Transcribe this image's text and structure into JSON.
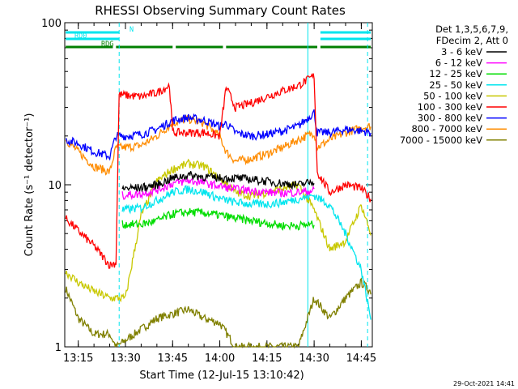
{
  "chart_data": {
    "type": "line",
    "title": "RHESSI Observing Summary Count Rates",
    "xlabel": "Start Time (12-Jul-15 13:10:42)",
    "ylabel": "Count Rate (s⁻¹ detector⁻¹)",
    "yscale": "log",
    "ylim": [
      1,
      100
    ],
    "y_ticks": [
      "1",
      "10",
      "100"
    ],
    "xlim_minutes": [
      13.17,
      14.83
    ],
    "x_ticks": [
      {
        "label": "13:15",
        "value": "13:15"
      },
      {
        "label": "13:30",
        "value": "13:30"
      },
      {
        "label": "13:45",
        "value": "13:45"
      },
      {
        "label": "14:00",
        "value": "14:00"
      },
      {
        "label": "14:15",
        "value": "14:15"
      },
      {
        "label": "14:30",
        "value": "14:30"
      },
      {
        "label": "14:45",
        "value": "14:45"
      }
    ],
    "legend": {
      "header": [
        "Det 1,3,5,6,7,9,",
        "FDecim 2, Att 0"
      ],
      "position": "right"
    },
    "timestamp": "29-Oct-2021 14:41",
    "flags": [
      {
        "label": "N",
        "color": "#00e5ee",
        "segments": [
          [
            "13:11",
            "13:28"
          ],
          [
            "14:32",
            "14:48"
          ]
        ]
      },
      {
        "label": "RD0",
        "color": "#00e5ee",
        "segments": [
          [
            "13:11",
            "13:28"
          ],
          [
            "14:32",
            "14:48"
          ]
        ]
      },
      {
        "label": "RDG",
        "color": "#008000",
        "segments": [
          [
            "13:11",
            "13:26"
          ],
          [
            "13:27",
            "13:45"
          ],
          [
            "13:46",
            "14:01"
          ],
          [
            "14:02",
            "14:31"
          ],
          [
            "14:32",
            "14:48"
          ]
        ]
      }
    ],
    "vlines": [
      {
        "time": "13:28",
        "color": "#00e5ee",
        "style": "dashed"
      },
      {
        "time": "14:28",
        "color": "#00e5ee",
        "style": "solid"
      },
      {
        "time": "14:47",
        "color": "#00e5ee",
        "style": "dashed"
      }
    ],
    "series": [
      {
        "name": "3 - 6 keV",
        "color": "#000000",
        "points": [
          [
            "13:29",
            9.5
          ],
          [
            "13:35",
            9.6
          ],
          [
            "13:40",
            10.0
          ],
          [
            "13:45",
            11.0
          ],
          [
            "13:50",
            11.5
          ],
          [
            "13:55",
            11.2
          ],
          [
            "14:00",
            11.0
          ],
          [
            "14:05",
            11.0
          ],
          [
            "14:10",
            10.8
          ],
          [
            "14:15",
            10.5
          ],
          [
            "14:20",
            10.2
          ],
          [
            "14:25",
            10.0
          ],
          [
            "14:30",
            10.5
          ]
        ]
      },
      {
        "name": "6 - 12 keV",
        "color": "#ff00ff",
        "points": [
          [
            "13:29",
            8.6
          ],
          [
            "13:35",
            8.8
          ],
          [
            "13:40",
            9.3
          ],
          [
            "13:45",
            10.2
          ],
          [
            "13:50",
            10.6
          ],
          [
            "13:55",
            10.3
          ],
          [
            "14:00",
            9.8
          ],
          [
            "14:05",
            9.4
          ],
          [
            "14:10",
            9.2
          ],
          [
            "14:15",
            9.0
          ],
          [
            "14:20",
            8.9
          ],
          [
            "14:25",
            9.0
          ],
          [
            "14:30",
            9.2
          ]
        ]
      },
      {
        "name": "12 - 25 keV",
        "color": "#00dd00",
        "points": [
          [
            "13:29",
            5.7
          ],
          [
            "13:35",
            5.7
          ],
          [
            "13:40",
            6.0
          ],
          [
            "13:45",
            6.6
          ],
          [
            "13:50",
            6.8
          ],
          [
            "13:55",
            6.7
          ],
          [
            "14:00",
            6.5
          ],
          [
            "14:05",
            6.2
          ],
          [
            "14:10",
            6.0
          ],
          [
            "14:15",
            5.8
          ],
          [
            "14:20",
            5.6
          ],
          [
            "14:25",
            5.6
          ],
          [
            "14:30",
            5.7
          ]
        ]
      },
      {
        "name": "25 - 50 keV",
        "color": "#00e5ee",
        "points": [
          [
            "13:29",
            7.0
          ],
          [
            "13:35",
            7.2
          ],
          [
            "13:40",
            8.0
          ],
          [
            "13:45",
            9.0
          ],
          [
            "13:50",
            9.4
          ],
          [
            "13:55",
            9.0
          ],
          [
            "14:00",
            8.2
          ],
          [
            "14:05",
            7.8
          ],
          [
            "14:10",
            7.6
          ],
          [
            "14:15",
            7.6
          ],
          [
            "14:20",
            7.8
          ],
          [
            "14:25",
            8.2
          ],
          [
            "14:30",
            8.6
          ],
          [
            "14:35",
            7.5
          ],
          [
            "14:40",
            5.0
          ],
          [
            "14:45",
            3.0
          ],
          [
            "14:48",
            1.5
          ]
        ]
      },
      {
        "name": "50 - 100 keV",
        "color": "#c8c800",
        "points": [
          [
            "13:11",
            2.9
          ],
          [
            "13:15",
            2.5
          ],
          [
            "13:20",
            2.2
          ],
          [
            "13:25",
            2.0
          ],
          [
            "13:30",
            2.0
          ],
          [
            "13:35",
            6.5
          ],
          [
            "13:40",
            10.5
          ],
          [
            "13:45",
            12.5
          ],
          [
            "13:50",
            13.5
          ],
          [
            "13:55",
            13.0
          ],
          [
            "14:00",
            11.0
          ],
          [
            "14:05",
            9.0
          ],
          [
            "14:10",
            8.5
          ],
          [
            "14:15",
            9.0
          ],
          [
            "14:20",
            9.5
          ],
          [
            "14:25",
            10.0
          ],
          [
            "14:30",
            7.0
          ],
          [
            "14:35",
            4.0
          ],
          [
            "14:40",
            4.5
          ],
          [
            "14:45",
            7.5
          ],
          [
            "14:48",
            5.0
          ]
        ]
      },
      {
        "name": "100 - 300 keV",
        "color": "#ff0000",
        "points": [
          [
            "13:11",
            6.2
          ],
          [
            "13:15",
            5.2
          ],
          [
            "13:20",
            4.2
          ],
          [
            "13:25",
            3.2
          ],
          [
            "13:27",
            3.3
          ],
          [
            "13:28",
            36
          ],
          [
            "13:35",
            35
          ],
          [
            "13:40",
            37
          ],
          [
            "13:44",
            41
          ],
          [
            "13:45",
            21
          ],
          [
            "13:55",
            21
          ],
          [
            "14:00",
            20
          ],
          [
            "14:02",
            40
          ],
          [
            "14:05",
            30
          ],
          [
            "14:10",
            32
          ],
          [
            "14:15",
            35
          ],
          [
            "14:20",
            38
          ],
          [
            "14:25",
            41
          ],
          [
            "14:30",
            47
          ],
          [
            "14:31",
            12
          ],
          [
            "14:35",
            9.0
          ],
          [
            "14:40",
            10.0
          ],
          [
            "14:45",
            9.5
          ],
          [
            "14:48",
            8.2
          ]
        ]
      },
      {
        "name": "300 - 800 keV",
        "color": "#0000ff",
        "points": [
          [
            "13:11",
            19
          ],
          [
            "13:15",
            18
          ],
          [
            "13:20",
            16
          ],
          [
            "13:25",
            15
          ],
          [
            "13:27",
            20
          ],
          [
            "13:30",
            20
          ],
          [
            "13:35",
            20.5
          ],
          [
            "13:40",
            22
          ],
          [
            "13:45",
            25
          ],
          [
            "13:50",
            26
          ],
          [
            "13:55",
            25
          ],
          [
            "14:00",
            23
          ],
          [
            "14:02",
            24
          ],
          [
            "14:05",
            21
          ],
          [
            "14:10",
            20
          ],
          [
            "14:15",
            20.5
          ],
          [
            "14:20",
            21.5
          ],
          [
            "14:25",
            23
          ],
          [
            "14:30",
            28
          ],
          [
            "14:31",
            21
          ],
          [
            "14:35",
            21
          ],
          [
            "14:40",
            22
          ],
          [
            "14:45",
            21.5
          ],
          [
            "14:48",
            21
          ]
        ]
      },
      {
        "name": "800 - 7000 keV",
        "color": "#ff8c00",
        "points": [
          [
            "13:11",
            19
          ],
          [
            "13:15",
            16
          ],
          [
            "13:20",
            13
          ],
          [
            "13:25",
            12
          ],
          [
            "13:27",
            17
          ],
          [
            "13:30",
            17
          ],
          [
            "13:35",
            17.5
          ],
          [
            "13:40",
            20
          ],
          [
            "13:45",
            24
          ],
          [
            "13:50",
            25.5
          ],
          [
            "13:55",
            24
          ],
          [
            "14:00",
            20
          ],
          [
            "14:02",
            16
          ],
          [
            "14:05",
            14
          ],
          [
            "14:10",
            14.5
          ],
          [
            "14:15",
            15.5
          ],
          [
            "14:20",
            17
          ],
          [
            "14:25",
            19
          ],
          [
            "14:30",
            21
          ],
          [
            "14:31",
            17
          ],
          [
            "14:35",
            19
          ],
          [
            "14:40",
            21
          ],
          [
            "14:45",
            22.5
          ],
          [
            "14:48",
            23
          ]
        ]
      },
      {
        "name": "7000 - 15000 keV",
        "color": "#808000",
        "points": [
          [
            "13:11",
            2.3
          ],
          [
            "13:15",
            1.5
          ],
          [
            "13:20",
            1.2
          ],
          [
            "13:25",
            1.2
          ],
          [
            "13:27",
            1.0
          ],
          [
            "13:40",
            1.5
          ],
          [
            "13:45",
            1.6
          ],
          [
            "13:50",
            1.7
          ],
          [
            "13:55",
            1.5
          ],
          [
            "14:00",
            1.4
          ],
          [
            "14:05",
            1.0
          ],
          [
            "14:25",
            1.0
          ],
          [
            "14:30",
            2.0
          ],
          [
            "14:35",
            1.5
          ],
          [
            "14:40",
            2.0
          ],
          [
            "14:45",
            2.5
          ],
          [
            "14:48",
            2.2
          ]
        ]
      }
    ]
  }
}
